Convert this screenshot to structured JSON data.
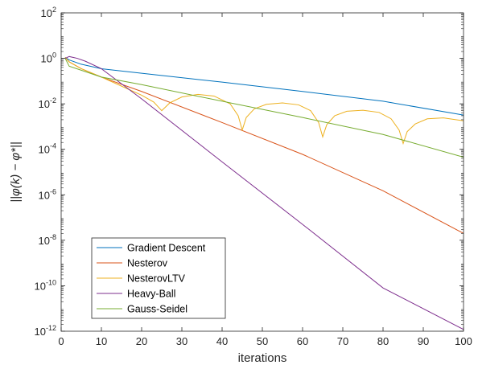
{
  "chart_data": {
    "type": "line",
    "xlabel": "iterations",
    "ylabel": "||φ(k) − φ*||",
    "x_scale": "linear",
    "y_scale": "log",
    "xlim": [
      0,
      100
    ],
    "ylim": [
      1e-12,
      100
    ],
    "x_ticks": [
      0,
      10,
      20,
      30,
      40,
      50,
      60,
      70,
      80,
      90,
      100
    ],
    "x_tick_labels": [
      "0",
      "10",
      "20",
      "30",
      "40",
      "50",
      "60",
      "70",
      "80",
      "90",
      "100"
    ],
    "y_ticks": [
      1e-12,
      1e-10,
      1e-08,
      1e-06,
      0.0001,
      0.01,
      1,
      100
    ],
    "y_tick_labels": [
      {
        "base": "10",
        "exp": "-12"
      },
      {
        "base": "10",
        "exp": "-10"
      },
      {
        "base": "10",
        "exp": "-8"
      },
      {
        "base": "10",
        "exp": "-6"
      },
      {
        "base": "10",
        "exp": "-4"
      },
      {
        "base": "10",
        "exp": "-2"
      },
      {
        "base": "10",
        "exp": "0"
      },
      {
        "base": "10",
        "exp": "2"
      }
    ],
    "grid": false,
    "legend_position": "bottom-left",
    "series": [
      {
        "name": "Gradient Descent",
        "color": "#0072BD",
        "points": [
          [
            1,
            1.1
          ],
          [
            2,
            0.85
          ],
          [
            5,
            0.55
          ],
          [
            10,
            0.35
          ],
          [
            20,
            0.22
          ],
          [
            40,
            0.09
          ],
          [
            60,
            0.035
          ],
          [
            80,
            0.013
          ],
          [
            100,
            0.0032
          ]
        ]
      },
      {
        "name": "Nesterov",
        "color": "#D95319",
        "points": [
          [
            1,
            1.1
          ],
          [
            2,
            0.7
          ],
          [
            5,
            0.35
          ],
          [
            10,
            0.15
          ],
          [
            20,
            0.035
          ],
          [
            40,
            0.0015
          ],
          [
            60,
            6e-05
          ],
          [
            80,
            1.5e-06
          ],
          [
            100,
            2e-08
          ]
        ]
      },
      {
        "name": "NesterovLTV",
        "color": "#EDB120",
        "points": [
          [
            1,
            1.1
          ],
          [
            2,
            0.7
          ],
          [
            5,
            0.35
          ],
          [
            10,
            0.15
          ],
          [
            15,
            0.06
          ],
          [
            20,
            0.024
          ],
          [
            23,
            0.012
          ],
          [
            25,
            0.005
          ],
          [
            27,
            0.011
          ],
          [
            30,
            0.02
          ],
          [
            34,
            0.026
          ],
          [
            38,
            0.022
          ],
          [
            42,
            0.01
          ],
          [
            44,
            0.003
          ],
          [
            45,
            0.0007
          ],
          [
            46,
            0.0025
          ],
          [
            48,
            0.006
          ],
          [
            51,
            0.0095
          ],
          [
            55,
            0.011
          ],
          [
            59,
            0.009
          ],
          [
            62,
            0.005
          ],
          [
            64,
            0.0015
          ],
          [
            65,
            0.00035
          ],
          [
            66,
            0.0012
          ],
          [
            68,
            0.003
          ],
          [
            71,
            0.0047
          ],
          [
            75,
            0.0052
          ],
          [
            79,
            0.0042
          ],
          [
            82,
            0.0022
          ],
          [
            84,
            0.0007
          ],
          [
            85,
            0.00018
          ],
          [
            86,
            0.0006
          ],
          [
            88,
            0.0013
          ],
          [
            91,
            0.0022
          ],
          [
            95,
            0.0024
          ],
          [
            100,
            0.0018
          ]
        ]
      },
      {
        "name": "Heavy-Ball",
        "color": "#7E2F8E",
        "points": [
          [
            1,
            1.0
          ],
          [
            2,
            1.2
          ],
          [
            4,
            1.0
          ],
          [
            6,
            0.75
          ],
          [
            10,
            0.35
          ],
          [
            20,
            0.0165
          ],
          [
            40,
            2.8e-05
          ],
          [
            60,
            5e-08
          ],
          [
            80,
            8e-11
          ],
          [
            100,
            1.2e-12
          ]
        ]
      },
      {
        "name": "Gauss-Seidel",
        "color": "#77AC30",
        "points": [
          [
            1,
            1.0
          ],
          [
            2,
            0.45
          ],
          [
            5,
            0.3
          ],
          [
            10,
            0.15
          ],
          [
            20,
            0.07
          ],
          [
            40,
            0.013
          ],
          [
            60,
            0.0025
          ],
          [
            80,
            0.00045
          ],
          [
            100,
            4.5e-05
          ]
        ]
      }
    ]
  }
}
